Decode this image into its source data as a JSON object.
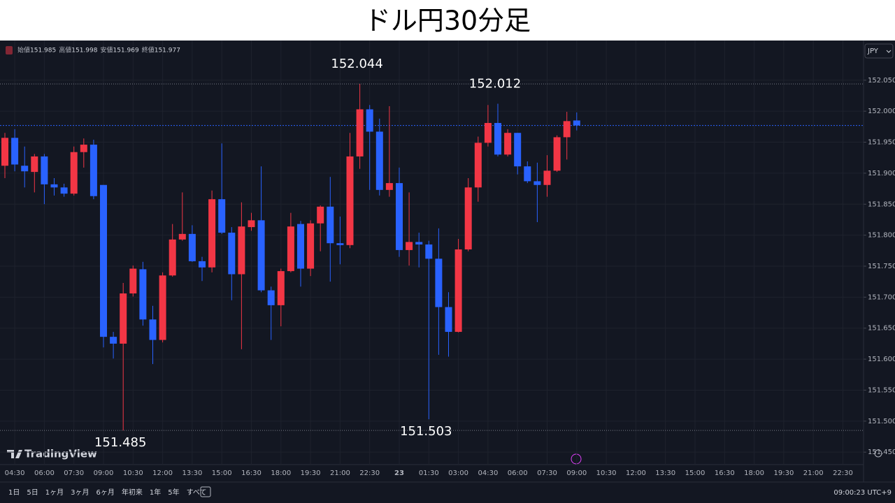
{
  "title": "ドル円30分足",
  "chart_data": {
    "type": "candlestick",
    "categories": [
      null,
      "04:30",
      null,
      null,
      "06:00",
      null,
      null,
      "07:30",
      null,
      null,
      "09:00",
      null,
      null,
      "10:30",
      null,
      null,
      "12:00",
      null,
      null,
      "13:30",
      null,
      null,
      "15:00",
      null,
      null,
      "16:30",
      null,
      null,
      "18:00",
      null,
      null,
      "19:30",
      null,
      null,
      "21:00",
      null,
      null,
      "22:30",
      null,
      null,
      "23",
      null,
      null,
      "01:30",
      null,
      null,
      "03:00",
      null,
      null,
      "04:30",
      null,
      null,
      "06:00",
      null,
      null,
      "07:30",
      null,
      null,
      "09:00"
    ],
    "future_categories": [
      "10:30",
      "12:00",
      "13:30",
      "15:00",
      "16:30",
      "18:00",
      "19:30",
      "21:00",
      "22:30"
    ],
    "open": [
      151.912,
      151.957,
      151.912,
      151.902,
      151.927,
      151.882,
      151.877,
      151.867,
      151.934,
      151.946,
      151.881,
      151.636,
      151.625,
      151.706,
      151.745,
      151.664,
      151.631,
      151.735,
      151.793,
      151.802,
      151.758,
      151.748,
      151.858,
      151.804,
      151.737,
      151.813,
      151.824,
      151.711,
      151.687,
      151.742,
      151.818,
      151.746,
      151.819,
      151.846,
      151.787,
      151.784,
      151.927,
      152.003,
      151.967,
      151.873,
      151.884,
      151.776,
      151.789,
      151.785,
      151.762,
      151.684,
      151.644,
      151.777,
      151.877,
      151.949,
      151.981,
      151.93,
      151.965,
      151.911,
      151.887,
      151.881,
      151.904,
      151.958,
      151.985
    ],
    "high": [
      151.965,
      151.971,
      151.943,
      151.931,
      151.931,
      151.892,
      151.883,
      151.943,
      151.956,
      151.954,
      151.881,
      151.644,
      151.723,
      151.751,
      151.757,
      151.686,
      151.74,
      151.818,
      151.869,
      151.816,
      151.765,
      151.872,
      151.948,
      151.813,
      151.853,
      151.836,
      151.911,
      151.717,
      151.746,
      151.836,
      151.823,
      151.824,
      151.848,
      151.894,
      151.83,
      151.965,
      152.044,
      152.01,
      151.988,
      152.008,
      151.909,
      151.869,
      151.804,
      151.791,
      151.811,
      151.708,
      151.794,
      151.892,
      151.959,
      152.01,
      152.012,
      151.971,
      151.965,
      151.919,
      151.917,
      151.929,
      151.961,
      151.999,
      151.998
    ],
    "low": [
      151.892,
      151.903,
      151.877,
      151.869,
      151.85,
      151.864,
      151.862,
      151.864,
      151.909,
      151.858,
      151.619,
      151.601,
      151.485,
      151.701,
      151.654,
      151.592,
      151.627,
      151.733,
      151.791,
      151.757,
      151.726,
      151.74,
      151.802,
      151.695,
      151.616,
      151.807,
      151.708,
      151.631,
      151.653,
      151.74,
      151.717,
      151.734,
      151.774,
      151.725,
      151.753,
      151.779,
      151.907,
      151.873,
      151.864,
      151.862,
      151.765,
      151.751,
      151.748,
      151.503,
      151.607,
      151.604,
      151.643,
      151.774,
      151.854,
      151.943,
      151.927,
      151.927,
      151.898,
      151.884,
      151.821,
      151.862,
      151.902,
      151.922,
      151.969
    ],
    "close": [
      151.957,
      151.914,
      151.903,
      151.927,
      151.882,
      151.877,
      151.867,
      151.934,
      151.946,
      151.863,
      151.636,
      151.625,
      151.706,
      151.746,
      151.664,
      151.631,
      151.735,
      151.793,
      151.802,
      151.758,
      151.748,
      151.858,
      151.804,
      151.737,
      151.814,
      151.824,
      151.711,
      151.687,
      151.742,
      151.814,
      151.746,
      151.819,
      151.846,
      151.787,
      151.784,
      151.927,
      152.003,
      151.967,
      151.873,
      151.884,
      151.776,
      151.789,
      151.785,
      151.762,
      151.684,
      151.644,
      151.777,
      151.877,
      151.949,
      151.981,
      151.93,
      151.965,
      151.911,
      151.887,
      151.881,
      151.904,
      151.958,
      151.984,
      151.977
    ],
    "up_color": "#f23645",
    "down_color": "#2962ff",
    "ylim": [
      151.404,
      152.114
    ],
    "yticks": [
      {
        "value": 152.05,
        "label": "152.050"
      },
      {
        "value": 152.0,
        "label": "152.000"
      },
      {
        "value": 151.95,
        "label": "151.950"
      },
      {
        "value": 151.9,
        "label": "151.900"
      },
      {
        "value": 151.85,
        "label": "151.850"
      },
      {
        "value": 151.8,
        "label": "151.800"
      },
      {
        "value": 151.75,
        "label": "151.750"
      },
      {
        "value": 151.7,
        "label": "151.700"
      },
      {
        "value": 151.65,
        "label": "151.650"
      },
      {
        "value": 151.6,
        "label": "151.600"
      },
      {
        "value": 151.55,
        "label": "151.550"
      },
      {
        "value": 151.5,
        "label": "151.500"
      },
      {
        "value": 151.45,
        "label": "151.450"
      }
    ],
    "grid": true,
    "annotations": [
      152.044,
      152.012,
      151.485,
      151.503
    ],
    "legend": {
      "labels": [
        "始値",
        "高値",
        "安値",
        "終値"
      ],
      "values": [
        151.985,
        151.998,
        151.969,
        151.977
      ]
    },
    "currency": "JPY",
    "brand": "TradingView",
    "time_label": "09:00:23 UTC+9"
  },
  "toolbar": {
    "ranges": [
      "1日",
      "5日",
      "1ヶ月",
      "3ヶ月",
      "6ヶ月",
      "年初来",
      "1年",
      "5年",
      "すべて"
    ]
  }
}
